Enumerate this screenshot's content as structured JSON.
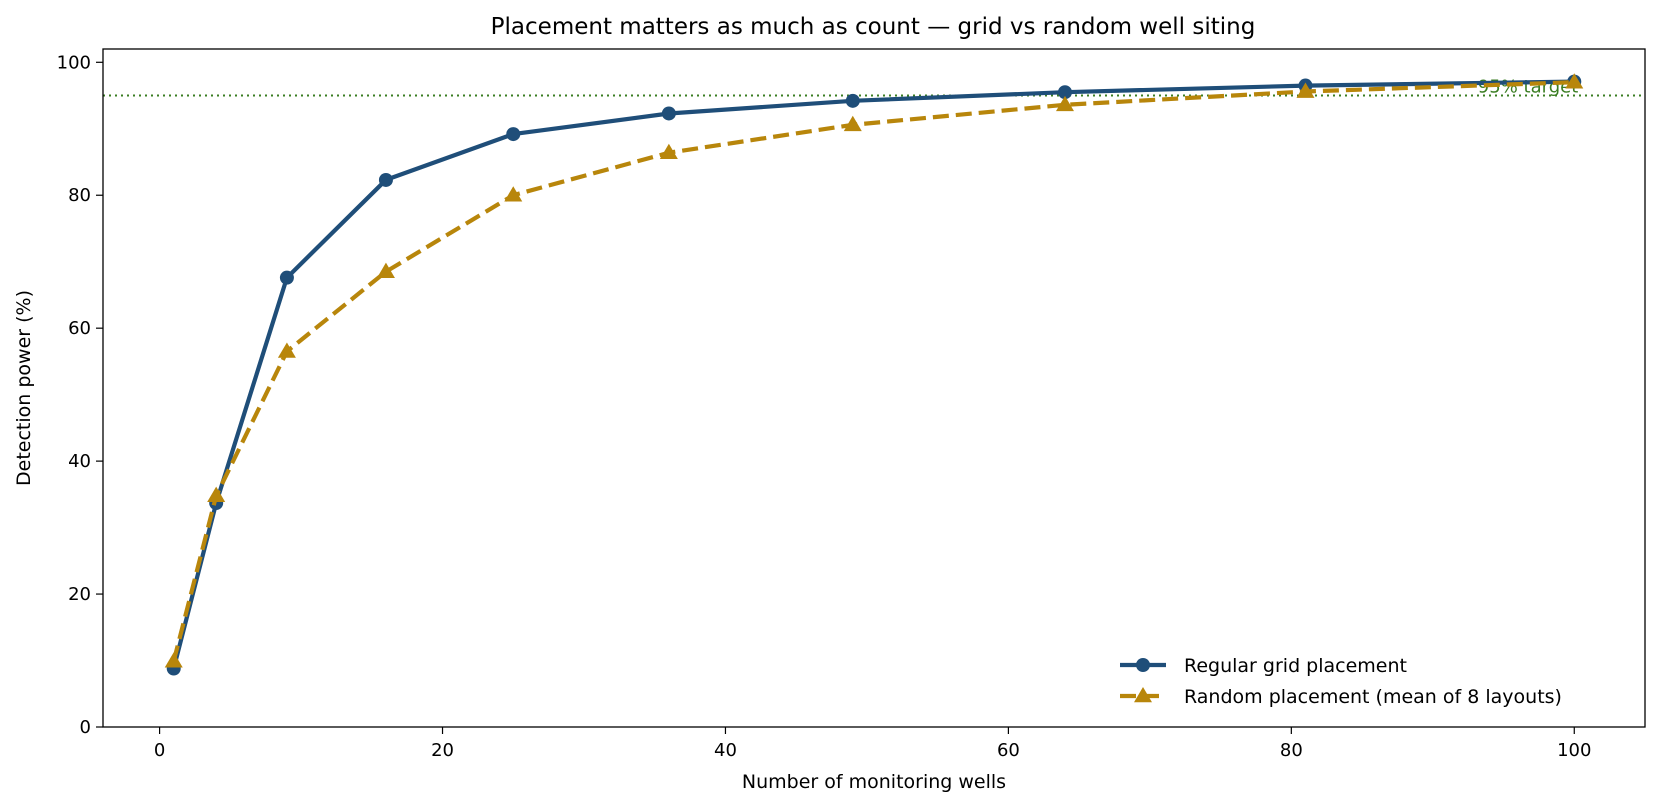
{
  "chart_data": {
    "type": "line",
    "title": "Placement matters as much as count — grid vs random well siting",
    "xlabel": "Number of monitoring wells",
    "ylabel": "Detection power  (%)",
    "xlim": [
      -4,
      105
    ],
    "ylim": [
      0,
      102
    ],
    "xticks": [
      0,
      20,
      40,
      60,
      80,
      100
    ],
    "yticks": [
      0,
      20,
      40,
      60,
      80,
      100
    ],
    "grid": false,
    "legend_position": "lower-right",
    "series": [
      {
        "name": "Regular grid placement",
        "color": "#1f4e79",
        "style": "solid",
        "marker": "circle",
        "x": [
          1,
          4,
          9,
          16,
          25,
          36,
          49,
          64,
          81,
          100
        ],
        "y": [
          8.8,
          33.7,
          67.6,
          82.3,
          89.2,
          92.3,
          94.2,
          95.5,
          96.5,
          97.1
        ]
      },
      {
        "name": "Random placement (mean of 8 layouts)",
        "color": "#b8860b",
        "style": "dashed",
        "marker": "triangle",
        "x": [
          1,
          4,
          9,
          16,
          25,
          36,
          49,
          64,
          81,
          100
        ],
        "y": [
          9.9,
          34.8,
          56.5,
          68.5,
          80.0,
          86.4,
          90.6,
          93.6,
          95.6,
          97.0
        ]
      }
    ],
    "reference_line": {
      "y": 95,
      "label": "95% target",
      "color": "#3a7d22",
      "style": "dotted"
    }
  }
}
